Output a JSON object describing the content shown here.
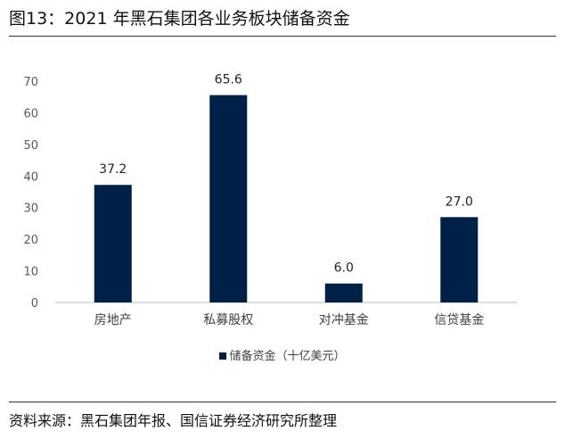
{
  "figure": {
    "title": "图13：2021 年黑石集团各业务板块储备资金",
    "source": "资料来源：黑石集团年报、国信证券经济研究所整理"
  },
  "colors": {
    "bar": "#002147",
    "axis": "#bfbfbf",
    "rule": "#333333"
  },
  "chart_data": {
    "type": "bar",
    "title": "",
    "xlabel": "",
    "ylabel": "",
    "categories": [
      "房地产",
      "私募股权",
      "对冲基金",
      "信贷基金"
    ],
    "series": [
      {
        "name": "储备资金（十亿美元）",
        "values": [
          37.2,
          65.6,
          6.0,
          27.0
        ]
      }
    ],
    "data_labels": [
      "37.2",
      "65.6",
      "6.0",
      "27.0"
    ],
    "ylim": [
      0,
      70
    ],
    "yticks": [
      0,
      10,
      20,
      30,
      40,
      50,
      60,
      70
    ],
    "grid": false,
    "legend_position": "bottom"
  }
}
